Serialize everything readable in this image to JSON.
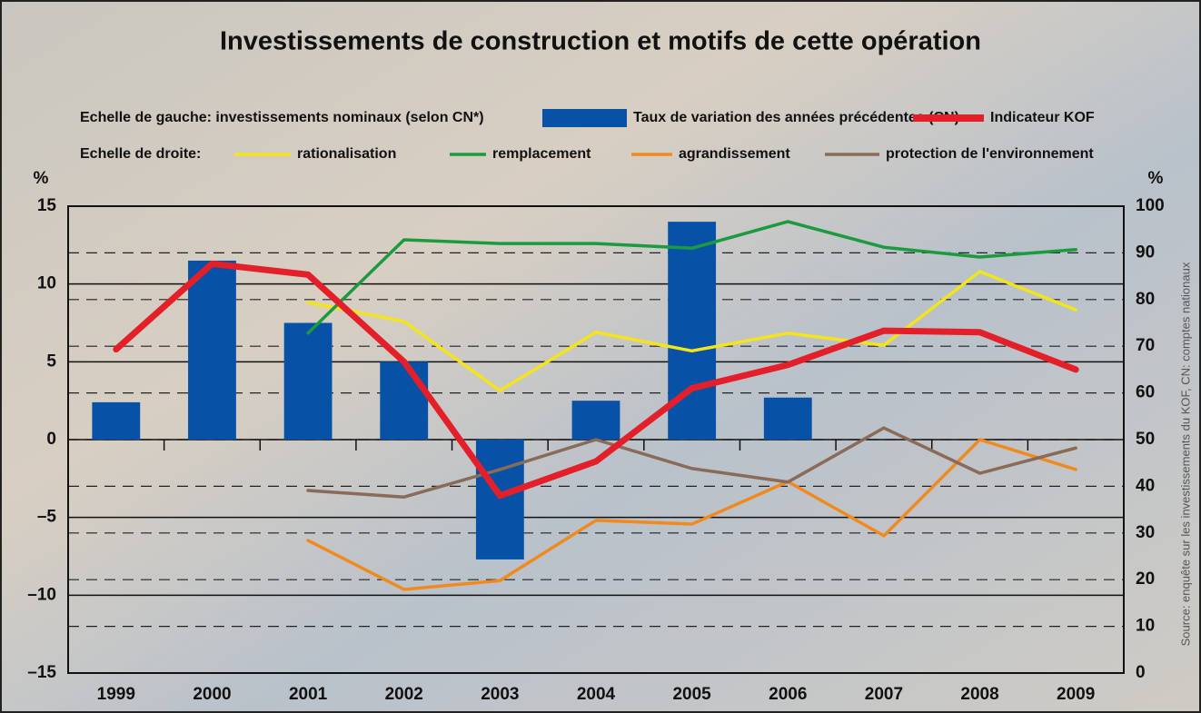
{
  "chart_data": {
    "type": "bar",
    "title": "Investissements de construction et motifs de cette opération",
    "legend_left_label": "Echelle de gauche: investissements nominaux (selon CN*)",
    "legend_right_label": "Echelle de droite:",
    "y_label": "%",
    "y2_label": "%",
    "source": "Source: enquête sur les investissements du KOF, CN: comptes nationaux",
    "categories": [
      "1999",
      "2000",
      "2001",
      "2002",
      "2003",
      "2004",
      "2005",
      "2006",
      "2007",
      "2008",
      "2009"
    ],
    "series": [
      {
        "name": "Taux de variation des années précédentes (CN)",
        "type": "bar",
        "color": "#0752a6",
        "values": [
          2.4,
          11.5,
          7.5,
          5.0,
          -7.7,
          2.5,
          14.0,
          2.7,
          null,
          null,
          null
        ]
      },
      {
        "name": "Indicateur  KOF",
        "type": "line",
        "color": "#e3202a",
        "values": [
          5.8,
          11.3,
          10.6,
          5.0,
          -3.6,
          -1.4,
          3.3,
          4.8,
          7.0,
          6.9,
          4.5
        ]
      },
      {
        "name": "rationalisation",
        "type": "line",
        "axis": "y2",
        "color": "#f4e41a",
        "values": [
          null,
          null,
          79.4,
          75.3,
          60.5,
          73.0,
          69.0,
          72.8,
          70.2,
          86.0,
          77.8
        ]
      },
      {
        "name": "remplacement",
        "type": "line",
        "axis": "y2",
        "color": "#1c9a40",
        "values": [
          null,
          null,
          72.8,
          92.8,
          92.0,
          92.0,
          91.0,
          96.7,
          91.2,
          89.1,
          90.7
        ]
      },
      {
        "name": "agrandissement",
        "type": "line",
        "axis": "y2",
        "color": "#f08a1e",
        "values": [
          null,
          null,
          28.4,
          17.9,
          19.8,
          32.7,
          31.9,
          41.0,
          29.4,
          50.0,
          43.6
        ]
      },
      {
        "name": "protection de l'environnement",
        "type": "line",
        "axis": "y2",
        "color": "#8a6a58",
        "values": [
          null,
          null,
          39.1,
          37.7,
          43.6,
          50.0,
          43.8,
          40.9,
          52.5,
          42.8,
          48.2
        ]
      }
    ],
    "ylim": [
      -15,
      15
    ],
    "yticks": [
      {
        "value": -15,
        "label": "–15"
      },
      {
        "value": -10,
        "label": "–10"
      },
      {
        "value": -5,
        "label": "–5"
      },
      0,
      5,
      10,
      15
    ],
    "y2lim": [
      0,
      100
    ],
    "y2ticks": [
      0,
      10,
      20,
      30,
      40,
      50,
      60,
      70,
      80,
      90,
      100
    ],
    "grid": true
  }
}
